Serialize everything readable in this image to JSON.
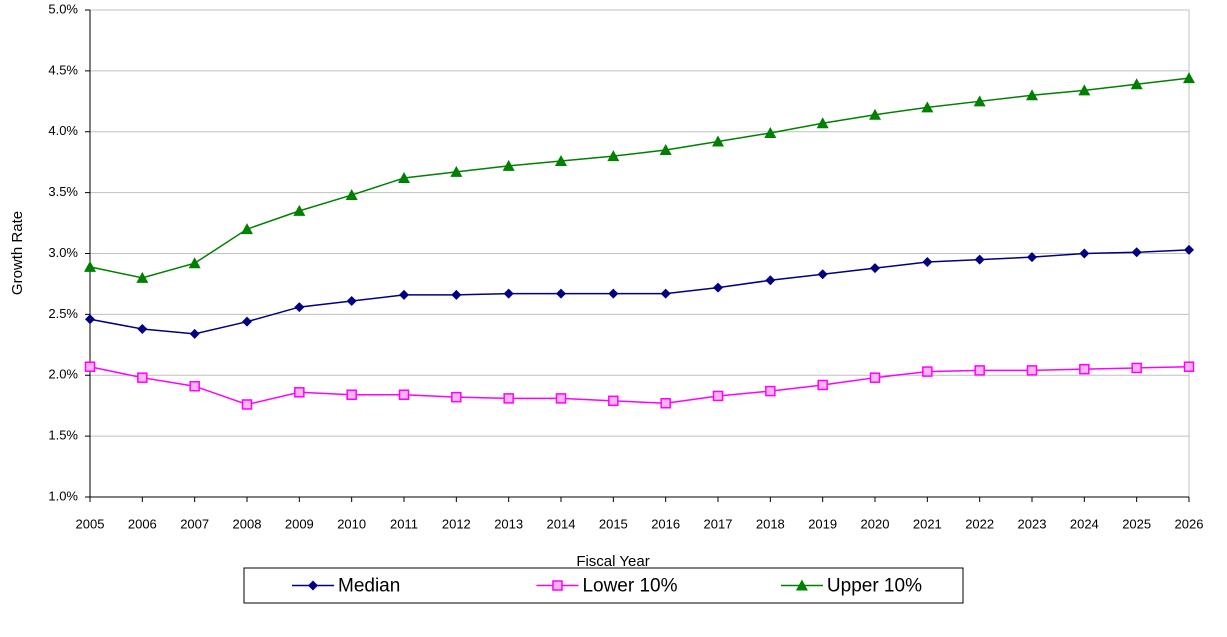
{
  "chart_data": {
    "type": "line",
    "y_label": "Growth Rate",
    "x_label": "Fiscal Year",
    "x": [
      2005,
      2006,
      2007,
      2008,
      2009,
      2010,
      2011,
      2012,
      2013,
      2014,
      2015,
      2016,
      2017,
      2018,
      2019,
      2020,
      2021,
      2022,
      2023,
      2024,
      2025,
      2026
    ],
    "xlim": [
      2005,
      2026
    ],
    "ylim": [
      1,
      5
    ],
    "yticks": [
      {
        "value": 1,
        "label": "1.0%"
      },
      {
        "value": 1.5,
        "label": "1.5%"
      },
      {
        "value": 2,
        "label": "2.0%"
      },
      {
        "value": 2.5,
        "label": "2.5%"
      },
      {
        "value": 3,
        "label": "3.0%"
      },
      {
        "value": 3.5,
        "label": "3.5%"
      },
      {
        "value": 4,
        "label": "4.0%"
      },
      {
        "value": 4.5,
        "label": "4.5%"
      },
      {
        "value": 5,
        "label": "5.0%"
      }
    ],
    "grid": true,
    "legend": "bottom",
    "series": [
      {
        "name": "Median",
        "color": "#000080",
        "marker": "diamond",
        "values": [
          2.46,
          2.38,
          2.34,
          2.44,
          2.56,
          2.61,
          2.66,
          2.66,
          2.67,
          2.67,
          2.67,
          2.67,
          2.72,
          2.78,
          2.83,
          2.88,
          2.93,
          2.95,
          2.97,
          3.0,
          3.01,
          3.03
        ]
      },
      {
        "name": "Lower 10%",
        "color": "#ff00ff",
        "marker": "square",
        "values": [
          2.07,
          1.98,
          1.91,
          1.76,
          1.86,
          1.84,
          1.84,
          1.82,
          1.81,
          1.81,
          1.79,
          1.77,
          1.83,
          1.87,
          1.92,
          1.98,
          2.03,
          2.04,
          2.04,
          2.05,
          2.06,
          2.07
        ]
      },
      {
        "name": "Upper 10%",
        "color": "#008000",
        "marker": "triangle",
        "values": [
          2.89,
          2.8,
          2.92,
          3.2,
          3.35,
          3.48,
          3.62,
          3.67,
          3.72,
          3.76,
          3.8,
          3.85,
          3.92,
          3.99,
          4.07,
          4.14,
          4.2,
          4.25,
          4.3,
          4.34,
          4.39,
          4.44
        ]
      }
    ]
  }
}
